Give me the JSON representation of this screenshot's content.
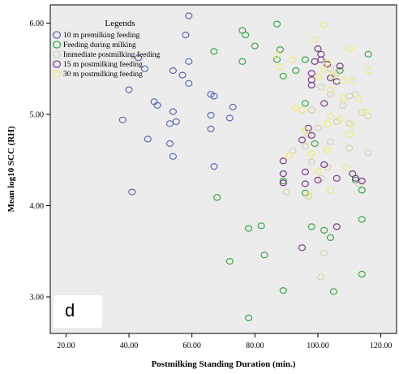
{
  "chart_data": {
    "type": "scatter",
    "panel_label": "d",
    "xlabel": "Postmilking Standing Duration (min.)",
    "ylabel": "Mean log10 SCC (RH)",
    "xlim": [
      15,
      125
    ],
    "ylim": [
      2.6,
      6.2
    ],
    "x_ticks": [
      20,
      40,
      60,
      80,
      100,
      120
    ],
    "x_tick_labels": [
      "20.00",
      "40.00",
      "60.00",
      "80.00",
      "100.00",
      "120.00"
    ],
    "y_ticks": [
      3,
      4,
      5,
      6
    ],
    "y_tick_labels": [
      "3.00",
      "4.00",
      "5.00",
      "6.00"
    ],
    "grid": false,
    "background": "#ececec",
    "legend": {
      "title": "Legends",
      "placement": "top-left"
    },
    "series": [
      {
        "name": "10 m premilking feeding",
        "color": "#5b6bb5",
        "marker": "open-circle",
        "points": [
          [
            59,
            6.08
          ],
          [
            58,
            5.87
          ],
          [
            43,
            5.62
          ],
          [
            59,
            5.58
          ],
          [
            45,
            5.5
          ],
          [
            54,
            5.48
          ],
          [
            57,
            5.43
          ],
          [
            40,
            5.27
          ],
          [
            59,
            5.34
          ],
          [
            67,
            5.2
          ],
          [
            66,
            5.22
          ],
          [
            48,
            5.14
          ],
          [
            73,
            5.08
          ],
          [
            49,
            5.1
          ],
          [
            54,
            5.03
          ],
          [
            66,
            4.99
          ],
          [
            72,
            4.96
          ],
          [
            38,
            4.94
          ],
          [
            53,
            4.9
          ],
          [
            55,
            4.92
          ],
          [
            66,
            4.84
          ],
          [
            46,
            4.73
          ],
          [
            53,
            4.68
          ],
          [
            54,
            4.54
          ],
          [
            67,
            4.43
          ],
          [
            41,
            4.15
          ]
        ]
      },
      {
        "name": "Feeding during milking",
        "color": "#3aa84a",
        "marker": "open-circle",
        "points": [
          [
            87,
            5.99
          ],
          [
            76,
            5.92
          ],
          [
            77,
            5.87
          ],
          [
            80,
            5.75
          ],
          [
            67,
            5.69
          ],
          [
            88,
            5.71
          ],
          [
            87,
            5.6
          ],
          [
            96,
            5.6
          ],
          [
            76,
            5.58
          ],
          [
            116,
            5.66
          ],
          [
            93,
            5.48
          ],
          [
            89,
            5.42
          ],
          [
            107,
            5.48
          ],
          [
            96,
            5.12
          ],
          [
            99,
            4.68
          ],
          [
            89,
            4.27
          ],
          [
            96,
            4.14
          ],
          [
            112,
            4.28
          ],
          [
            114,
            4.17
          ],
          [
            68,
            4.09
          ],
          [
            82,
            3.78
          ],
          [
            78,
            3.75
          ],
          [
            98,
            3.77
          ],
          [
            102,
            3.73
          ],
          [
            114,
            3.85
          ],
          [
            104,
            3.65
          ],
          [
            83,
            3.46
          ],
          [
            72,
            3.39
          ],
          [
            114,
            3.25
          ],
          [
            89,
            3.07
          ],
          [
            105,
            3.06
          ],
          [
            78,
            2.77
          ]
        ]
      },
      {
        "name": "Immediate postmilking feeding",
        "color": "#d8d0b0",
        "marker": "open-circle",
        "points": [
          [
            99,
            5.58
          ],
          [
            104,
            5.5
          ],
          [
            106,
            5.45
          ],
          [
            101,
            5.3
          ],
          [
            104,
            5.22
          ],
          [
            110,
            5.2
          ],
          [
            112,
            5.22
          ],
          [
            108,
            5.1
          ],
          [
            98,
            5.05
          ],
          [
            114,
            5.02
          ],
          [
            116,
            4.98
          ],
          [
            106,
            4.92
          ],
          [
            110,
            4.9
          ],
          [
            100,
            4.85
          ],
          [
            97,
            4.78
          ],
          [
            96,
            4.65
          ],
          [
            104,
            4.7
          ],
          [
            92,
            4.6
          ],
          [
            110,
            4.63
          ],
          [
            116,
            4.58
          ],
          [
            98,
            4.48
          ],
          [
            103,
            4.42
          ],
          [
            113,
            4.24
          ],
          [
            101,
            4.3
          ],
          [
            90,
            4.15
          ],
          [
            97,
            4.1
          ],
          [
            102,
            3.48
          ],
          [
            101,
            3.22
          ]
        ]
      },
      {
        "name": "15 m postmilking feeding",
        "color": "#7a3d8c",
        "marker": "open-circle",
        "points": [
          [
            100,
            5.72
          ],
          [
            101,
            5.66
          ],
          [
            101,
            5.6
          ],
          [
            99,
            5.58
          ],
          [
            103,
            5.55
          ],
          [
            107,
            5.53
          ],
          [
            98,
            5.45
          ],
          [
            98,
            5.38
          ],
          [
            104,
            5.4
          ],
          [
            98,
            5.32
          ],
          [
            106,
            5.36
          ],
          [
            102,
            5.12
          ],
          [
            97,
            4.85
          ],
          [
            95,
            4.72
          ],
          [
            98,
            4.77
          ],
          [
            89,
            4.49
          ],
          [
            96,
            4.37
          ],
          [
            102,
            4.45
          ],
          [
            89,
            4.35
          ],
          [
            100,
            4.28
          ],
          [
            111,
            4.35
          ],
          [
            112,
            4.3
          ],
          [
            106,
            4.3
          ],
          [
            114,
            4.27
          ],
          [
            96,
            4.24
          ],
          [
            89,
            4.25
          ],
          [
            106,
            3.77
          ],
          [
            95,
            3.54
          ]
        ]
      },
      {
        "name": "30 m postmilking feeding",
        "color": "#eeeb7a",
        "marker": "open-circle",
        "points": [
          [
            102,
            5.98
          ],
          [
            99,
            5.82
          ],
          [
            87,
            5.65
          ],
          [
            92,
            5.6
          ],
          [
            103,
            5.57
          ],
          [
            110,
            5.72
          ],
          [
            105,
            5.43
          ],
          [
            102,
            5.49
          ],
          [
            88,
            5.52
          ],
          [
            100,
            5.41
          ],
          [
            108,
            5.37
          ],
          [
            111,
            5.37
          ],
          [
            116,
            5.48
          ],
          [
            104,
            5.27
          ],
          [
            108,
            5.18
          ],
          [
            113,
            5.17
          ],
          [
            93,
            5.07
          ],
          [
            95,
            5.05
          ],
          [
            115,
            5.03
          ],
          [
            104,
            4.98
          ],
          [
            107,
            4.95
          ],
          [
            103,
            4.9
          ],
          [
            111,
            4.88
          ],
          [
            96,
            4.82
          ],
          [
            110,
            4.78
          ],
          [
            103,
            4.61
          ],
          [
            98,
            4.57
          ],
          [
            91,
            4.55
          ],
          [
            100,
            4.38
          ],
          [
            109,
            4.42
          ],
          [
            104,
            4.17
          ],
          [
            97,
            4.12
          ]
        ]
      }
    ]
  }
}
